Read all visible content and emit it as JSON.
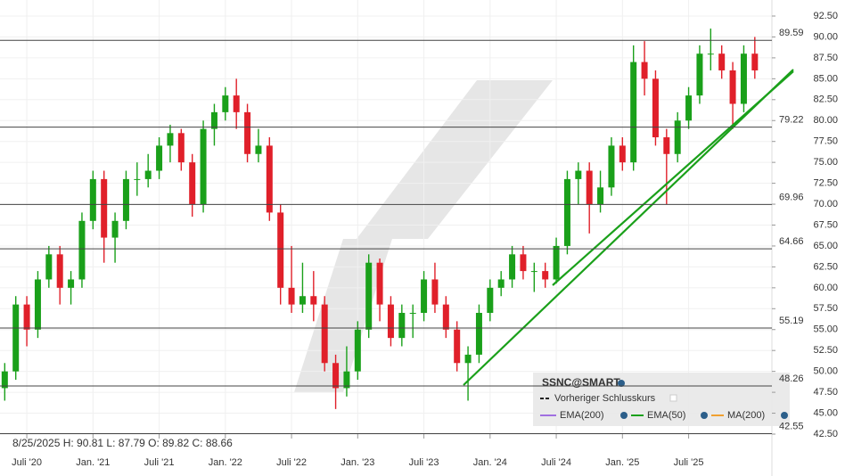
{
  "chart_data": {
    "type": "candlestick",
    "info": "8/25/2025   H: 90.81   L: 87.79   O: 89.82   C: 88.66",
    "x": [
      -2,
      -1,
      0,
      1,
      2,
      3,
      4,
      5,
      6,
      7,
      8,
      9,
      10,
      11,
      12,
      13,
      14,
      15,
      16,
      17,
      18,
      19,
      20,
      21,
      22,
      23,
      24,
      25,
      26,
      27,
      28,
      29,
      30,
      31,
      32,
      33,
      34,
      35,
      36,
      37,
      38,
      39,
      40,
      41,
      42,
      43,
      44,
      45,
      46,
      47,
      48,
      49,
      50,
      51,
      52,
      53,
      54,
      55,
      56,
      57,
      58,
      59,
      60,
      61,
      62,
      63,
      64,
      65,
      66
    ],
    "ohlc": [
      [
        48,
        51,
        46.5,
        50
      ],
      [
        50,
        59,
        49,
        58
      ],
      [
        58,
        59,
        53,
        55
      ],
      [
        55,
        62,
        54,
        61
      ],
      [
        61,
        65,
        60,
        64
      ],
      [
        64,
        65,
        58,
        60
      ],
      [
        60,
        62,
        58,
        61
      ],
      [
        61,
        69,
        60,
        68
      ],
      [
        68,
        74,
        67,
        73
      ],
      [
        73,
        74,
        63,
        66
      ],
      [
        66,
        69,
        63,
        68
      ],
      [
        68,
        74,
        67,
        73
      ],
      [
        73,
        75,
        71,
        73
      ],
      [
        73,
        76,
        72,
        74
      ],
      [
        74,
        78,
        73,
        77
      ],
      [
        77,
        79.5,
        75,
        78.5
      ],
      [
        78.5,
        79,
        74,
        75
      ],
      [
        75,
        76,
        68.5,
        70
      ],
      [
        70,
        80,
        69,
        79
      ],
      [
        79,
        82,
        77,
        81
      ],
      [
        81,
        84,
        80,
        83
      ],
      [
        83,
        85,
        79,
        81
      ],
      [
        81,
        82,
        75,
        76
      ],
      [
        76,
        79,
        75,
        77
      ],
      [
        77,
        78,
        68,
        69
      ],
      [
        69,
        70,
        58,
        60
      ],
      [
        60,
        65,
        57,
        58
      ],
      [
        58,
        63,
        57,
        59
      ],
      [
        59,
        62,
        56,
        58
      ],
      [
        58,
        59,
        50,
        51
      ],
      [
        51,
        52,
        45.5,
        48
      ],
      [
        48,
        53,
        47,
        50
      ],
      [
        50,
        56,
        49,
        55
      ],
      [
        55,
        64,
        54,
        63
      ],
      [
        63,
        63.5,
        56,
        58
      ],
      [
        58,
        59,
        53,
        54
      ],
      [
        54,
        58,
        53,
        57
      ],
      [
        57,
        58,
        54,
        57
      ],
      [
        57,
        62,
        56,
        61
      ],
      [
        61,
        63,
        57,
        58
      ],
      [
        58,
        59,
        54,
        55
      ],
      [
        55,
        56,
        50,
        51
      ],
      [
        51,
        53,
        46.5,
        52
      ],
      [
        52,
        58,
        51,
        57
      ],
      [
        57,
        61,
        56,
        60
      ],
      [
        60,
        62,
        59,
        61
      ],
      [
        61,
        65,
        60,
        64
      ],
      [
        64,
        65,
        61,
        62
      ],
      [
        62,
        63,
        59.5,
        62
      ],
      [
        62,
        63,
        60,
        61
      ],
      [
        61,
        66,
        60.5,
        65
      ],
      [
        65,
        74,
        64,
        73
      ],
      [
        73,
        75,
        70,
        74
      ],
      [
        74,
        75,
        66.5,
        70
      ],
      [
        70,
        74,
        69,
        72
      ],
      [
        72,
        78,
        71,
        77
      ],
      [
        77,
        78,
        74,
        75
      ],
      [
        75,
        89,
        74,
        87
      ],
      [
        87,
        89.5,
        83,
        85
      ],
      [
        85,
        86,
        77,
        78
      ],
      [
        78,
        79,
        70,
        76
      ],
      [
        76,
        81,
        75,
        80
      ],
      [
        80,
        84,
        79,
        83
      ],
      [
        83,
        89,
        82,
        88
      ],
      [
        88,
        91,
        86,
        88
      ],
      [
        88,
        89,
        85,
        86
      ],
      [
        86,
        87,
        79,
        82
      ],
      [
        82,
        89,
        81,
        88
      ],
      [
        88,
        90,
        85,
        86
      ]
    ],
    "up_color": "#1aa01a",
    "down_color": "#e0202a",
    "levels": [
      89.59,
      79.22,
      69.96,
      64.66,
      55.19,
      48.26,
      42.55
    ],
    "xlim": [
      -2.43,
      67.55
    ],
    "xticks": [
      {
        "value": 0,
        "label": "Juli '20"
      },
      {
        "value": 6,
        "label": "Jan. '21"
      },
      {
        "value": 12,
        "label": "Juli '21"
      },
      {
        "value": 18,
        "label": "Jan. '22"
      },
      {
        "value": 24,
        "label": "Juli '22"
      },
      {
        "value": 30,
        "label": "Jan. '23"
      },
      {
        "value": 36,
        "label": "Juli '23"
      },
      {
        "value": 42,
        "label": "Jan. '24"
      },
      {
        "value": 48,
        "label": "Juli '24"
      },
      {
        "value": 54,
        "label": "Jan. '25"
      },
      {
        "value": 60,
        "label": "Juli '25"
      }
    ],
    "ylim": [
      42.5,
      92.5
    ],
    "yticks": [
      {
        "value": 92.5,
        "label": "92.50"
      },
      {
        "value": 90,
        "label": "90.00"
      },
      {
        "value": 87.5,
        "label": "87.50"
      },
      {
        "value": 85,
        "label": "85.00"
      },
      {
        "value": 82.5,
        "label": "82.50"
      },
      {
        "value": 80,
        "label": "80.00"
      },
      {
        "value": 77.5,
        "label": "77.50"
      },
      {
        "value": 75,
        "label": "75.00"
      },
      {
        "value": 72.5,
        "label": "72.50"
      },
      {
        "value": 70,
        "label": "70.00"
      },
      {
        "value": 67.5,
        "label": "67.50"
      },
      {
        "value": 65,
        "label": "65.00"
      },
      {
        "value": 62.5,
        "label": "62.50"
      },
      {
        "value": 60,
        "label": "60.00"
      },
      {
        "value": 57.5,
        "label": "57.50"
      },
      {
        "value": 55,
        "label": "55.00"
      },
      {
        "value": 52.5,
        "label": "52.50"
      },
      {
        "value": 50,
        "label": "50.00"
      },
      {
        "value": 47.5,
        "label": "47.50"
      },
      {
        "value": 45,
        "label": "45.00"
      },
      {
        "value": 42.5,
        "label": "42.50"
      }
    ],
    "legend": {
      "symbol": "SSNC@SMART",
      "items": [
        "Vorheriger Schlusskurs",
        "EMA(200)",
        "EMA(50)",
        "MA(200)"
      ]
    }
  }
}
